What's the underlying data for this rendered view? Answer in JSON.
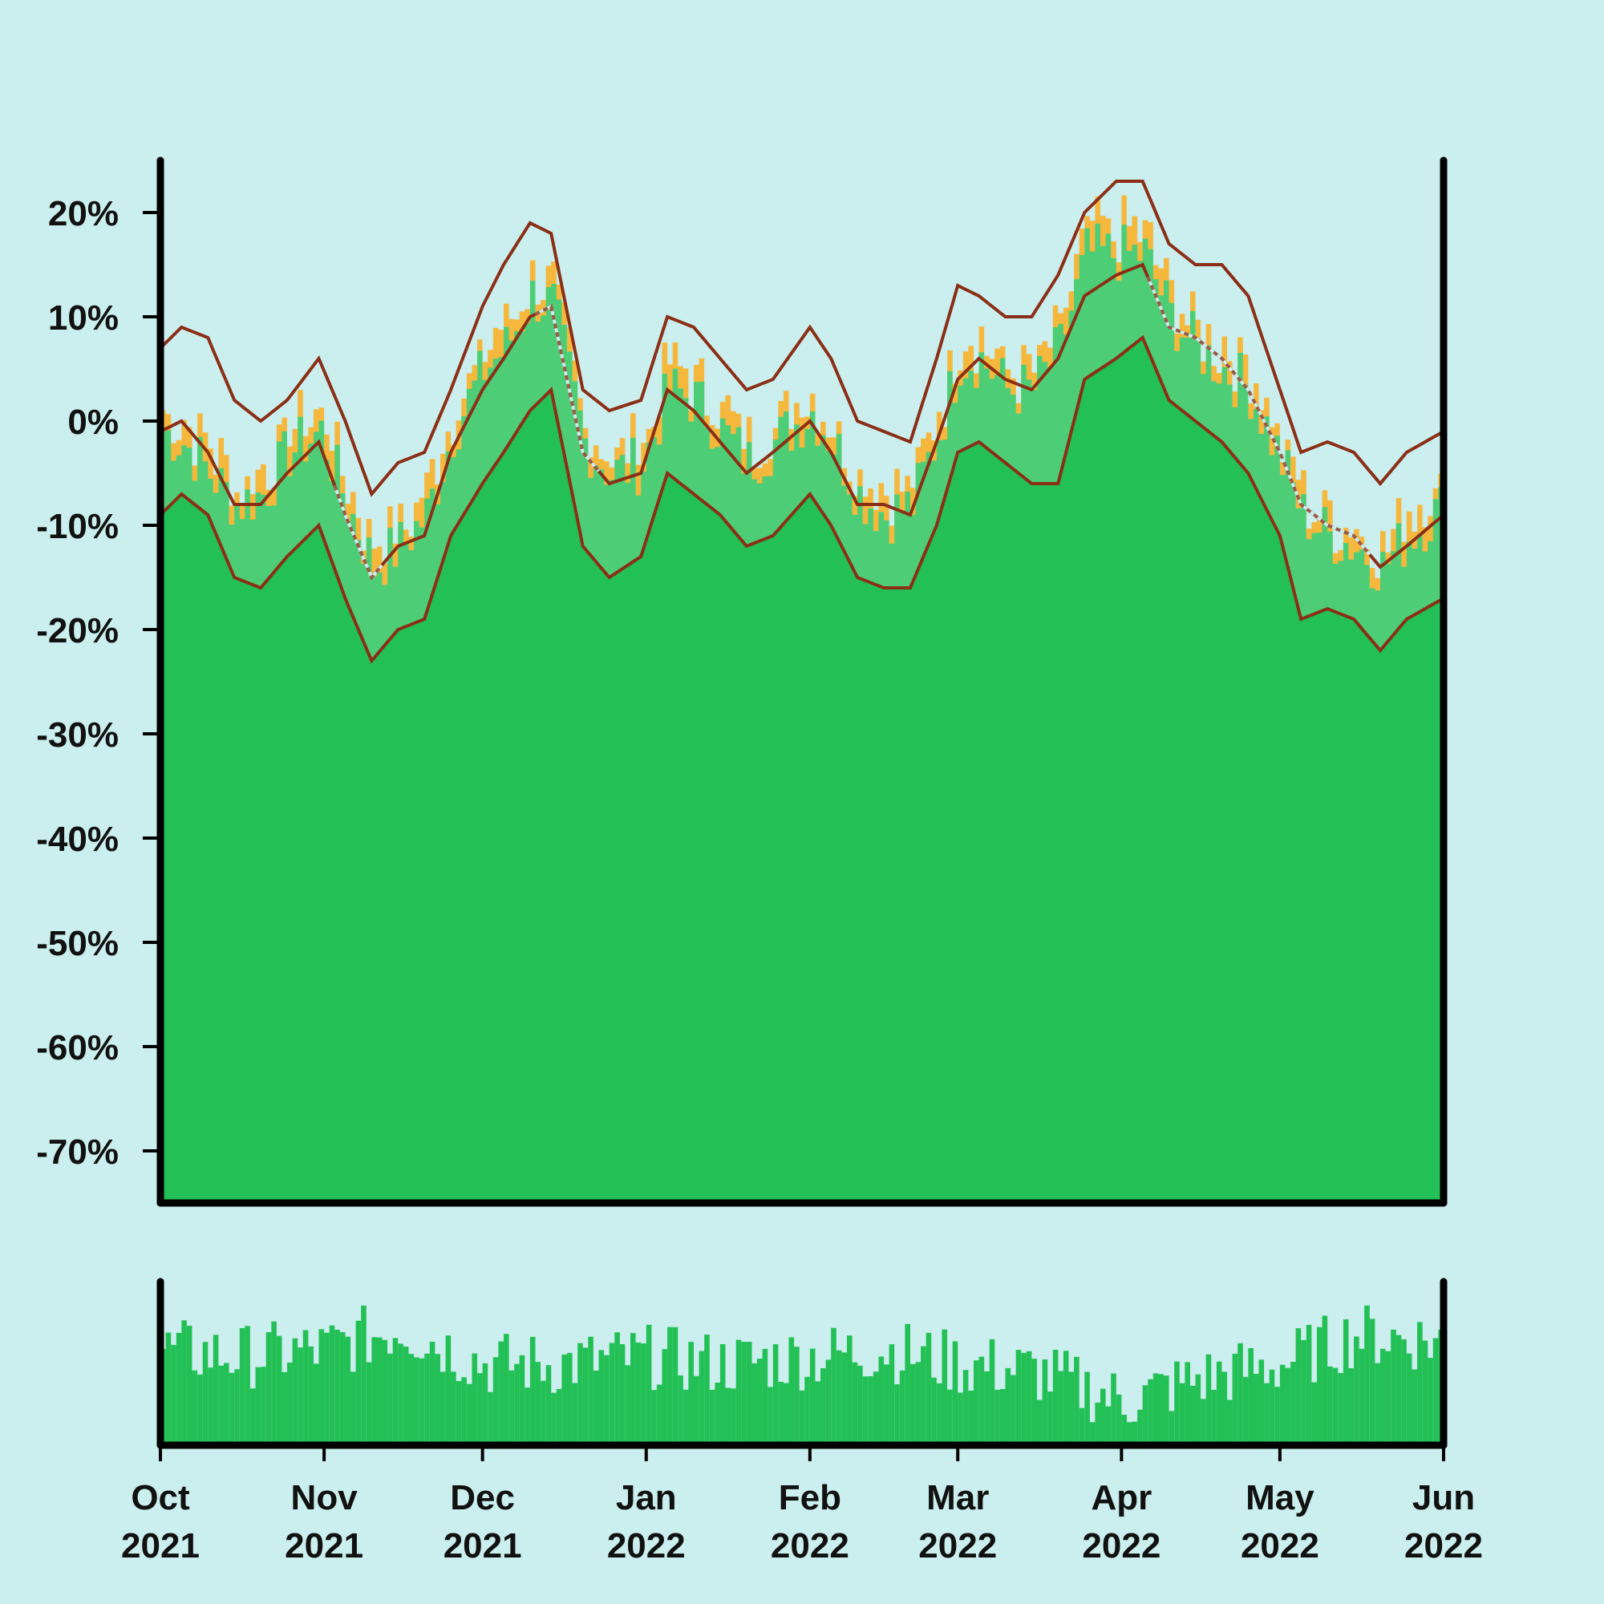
{
  "colors": {
    "background": "#cbeeee",
    "candle_up": "#22c055",
    "candle_down": "#f5b83d",
    "envelope_fill": "#4dce76",
    "band_line": "#8a2f16",
    "ma_dashed": "#9a5a48",
    "volume": "#22c055",
    "axis": "#000000"
  },
  "chart_data": [
    {
      "type": "area",
      "x_range": [
        "2021-10-01",
        "2022-06-01"
      ],
      "y_unit": "%",
      "ylim": [
        -75,
        25
      ],
      "y_ticks": [
        "20%",
        "10%",
        "0%",
        "-10%",
        "-20%",
        "-30%",
        "-40%",
        "-50%",
        "-60%",
        "-70%"
      ],
      "y_tick_values": [
        20,
        10,
        0,
        -10,
        -20,
        -30,
        -40,
        -50,
        -60,
        -70
      ],
      "grid": false,
      "legend": "none",
      "series": [
        {
          "role": "upper-band",
          "x": [
            "2021-10-01",
            "2021-10-05",
            "2021-10-10",
            "2021-10-15",
            "2021-10-20",
            "2021-10-25",
            "2021-10-31",
            "2021-11-05",
            "2021-11-10",
            "2021-11-15",
            "2021-11-20",
            "2021-11-25",
            "2021-12-01",
            "2021-12-05",
            "2021-12-10",
            "2021-12-14",
            "2021-12-20",
            "2021-12-25",
            "2021-12-31",
            "2022-01-05",
            "2022-01-10",
            "2022-01-15",
            "2022-01-20",
            "2022-01-25",
            "2022-02-01",
            "2022-02-05",
            "2022-02-10",
            "2022-02-15",
            "2022-02-20",
            "2022-02-25",
            "2022-03-01",
            "2022-03-05",
            "2022-03-10",
            "2022-03-15",
            "2022-03-20",
            "2022-03-25",
            "2022-03-31",
            "2022-04-05",
            "2022-04-10",
            "2022-04-15",
            "2022-04-20",
            "2022-04-25",
            "2022-05-01",
            "2022-05-05",
            "2022-05-10",
            "2022-05-15",
            "2022-05-20",
            "2022-05-25",
            "2022-06-01"
          ],
          "y": [
            7,
            9,
            8,
            2,
            0,
            2,
            6,
            0,
            -7,
            -4,
            -3,
            3,
            11,
            15,
            19,
            18,
            3,
            1,
            2,
            10,
            9,
            6,
            3,
            4,
            9,
            6,
            0,
            -1,
            -2,
            6,
            13,
            12,
            10,
            10,
            14,
            20,
            23,
            23,
            17,
            15,
            15,
            12,
            3,
            -3,
            -2,
            -3,
            -6,
            -3,
            -1
          ]
        },
        {
          "role": "middle-moving-average",
          "dashed_segments": [
            [
              "2021-11-03",
              "2021-11-12"
            ],
            [
              "2021-12-11",
              "2021-12-23"
            ],
            [
              "2022-04-06",
              "2022-05-18"
            ]
          ],
          "x": [
            "2021-10-01",
            "2021-10-05",
            "2021-10-10",
            "2021-10-15",
            "2021-10-20",
            "2021-10-25",
            "2021-10-31",
            "2021-11-05",
            "2021-11-10",
            "2021-11-15",
            "2021-11-20",
            "2021-11-25",
            "2021-12-01",
            "2021-12-05",
            "2021-12-10",
            "2021-12-14",
            "2021-12-20",
            "2021-12-25",
            "2021-12-31",
            "2022-01-05",
            "2022-01-10",
            "2022-01-15",
            "2022-01-20",
            "2022-01-25",
            "2022-02-01",
            "2022-02-05",
            "2022-02-10",
            "2022-02-15",
            "2022-02-20",
            "2022-02-25",
            "2022-03-01",
            "2022-03-05",
            "2022-03-10",
            "2022-03-15",
            "2022-03-20",
            "2022-03-25",
            "2022-03-31",
            "2022-04-05",
            "2022-04-10",
            "2022-04-15",
            "2022-04-20",
            "2022-04-25",
            "2022-05-01",
            "2022-05-05",
            "2022-05-10",
            "2022-05-15",
            "2022-05-20",
            "2022-05-25",
            "2022-06-01"
          ],
          "y": [
            -1,
            0,
            -3,
            -8,
            -8,
            -5,
            -2,
            -9,
            -15,
            -12,
            -11,
            -3,
            3,
            6,
            10,
            11,
            -3,
            -6,
            -5,
            3,
            1,
            -2,
            -5,
            -3,
            0,
            -3,
            -8,
            -8,
            -9,
            -2,
            4,
            6,
            4,
            3,
            6,
            12,
            14,
            15,
            9,
            8,
            6,
            3,
            -3,
            -8,
            -10,
            -11,
            -14,
            -12,
            -9
          ]
        },
        {
          "role": "lower-band",
          "x": [
            "2021-10-01",
            "2021-10-05",
            "2021-10-10",
            "2021-10-15",
            "2021-10-20",
            "2021-10-25",
            "2021-10-31",
            "2021-11-05",
            "2021-11-10",
            "2021-11-15",
            "2021-11-20",
            "2021-11-25",
            "2021-12-01",
            "2021-12-05",
            "2021-12-10",
            "2021-12-14",
            "2021-12-20",
            "2021-12-25",
            "2021-12-31",
            "2022-01-05",
            "2022-01-10",
            "2022-01-15",
            "2022-01-20",
            "2022-01-25",
            "2022-02-01",
            "2022-02-05",
            "2022-02-10",
            "2022-02-15",
            "2022-02-20",
            "2022-02-25",
            "2022-03-01",
            "2022-03-05",
            "2022-03-10",
            "2022-03-15",
            "2022-03-20",
            "2022-03-25",
            "2022-03-31",
            "2022-04-05",
            "2022-04-10",
            "2022-04-15",
            "2022-04-20",
            "2022-04-25",
            "2022-05-01",
            "2022-05-05",
            "2022-05-10",
            "2022-05-15",
            "2022-05-20",
            "2022-05-25",
            "2022-06-01"
          ],
          "y": [
            -9,
            -7,
            -9,
            -15,
            -16,
            -13,
            -10,
            -17,
            -23,
            -20,
            -19,
            -11,
            -6,
            -3,
            1,
            3,
            -12,
            -15,
            -13,
            -5,
            -7,
            -9,
            -12,
            -11,
            -7,
            -10,
            -15,
            -16,
            -16,
            -10,
            -3,
            -2,
            -4,
            -6,
            -6,
            4,
            6,
            8,
            2,
            0,
            -2,
            -5,
            -11,
            -19,
            -18,
            -19,
            -22,
            -19,
            -17
          ]
        },
        {
          "role": "price-close",
          "x": [
            "2021-10-01",
            "2021-10-05",
            "2021-10-10",
            "2021-10-15",
            "2021-10-20",
            "2021-10-25",
            "2021-10-31",
            "2021-11-05",
            "2021-11-10",
            "2021-11-15",
            "2021-11-20",
            "2021-11-25",
            "2021-12-01",
            "2021-12-05",
            "2021-12-10",
            "2021-12-14",
            "2021-12-20",
            "2021-12-25",
            "2021-12-31",
            "2022-01-05",
            "2022-01-10",
            "2022-01-15",
            "2022-01-20",
            "2022-01-25",
            "2022-02-01",
            "2022-02-05",
            "2022-02-10",
            "2022-02-15",
            "2022-02-20",
            "2022-02-25",
            "2022-03-01",
            "2022-03-05",
            "2022-03-10",
            "2022-03-15",
            "2022-03-20",
            "2022-03-25",
            "2022-03-31",
            "2022-04-05",
            "2022-04-10",
            "2022-04-15",
            "2022-04-20",
            "2022-04-25",
            "2022-05-01",
            "2022-05-05",
            "2022-05-10",
            "2022-05-15",
            "2022-05-20",
            "2022-05-25",
            "2022-06-01"
          ],
          "y": [
            -1,
            -2,
            -5,
            -8,
            -7,
            -3,
            -1,
            -8,
            -14,
            -12,
            -9,
            -1,
            5,
            7,
            12,
            11,
            -2,
            -5,
            -4,
            3,
            2,
            -1,
            -4,
            -2,
            1,
            -2,
            -7,
            -9,
            -8,
            -1,
            6,
            6,
            3,
            3,
            7,
            16,
            16,
            16,
            10,
            7,
            5,
            3,
            -4,
            -9,
            -11,
            -12,
            -14,
            -11,
            -8
          ]
        },
        {
          "role": "volume",
          "x": [
            "2021-10-01",
            "2021-10-15",
            "2021-11-01",
            "2021-11-15",
            "2021-12-01",
            "2021-12-15",
            "2022-01-01",
            "2022-01-15",
            "2022-02-01",
            "2022-02-15",
            "2022-03-01",
            "2022-03-15",
            "2022-04-01",
            "2022-04-15",
            "2022-05-01",
            "2022-05-15",
            "2022-06-01"
          ],
          "y": [
            0.65,
            0.6,
            0.65,
            0.8,
            0.55,
            0.55,
            0.6,
            0.55,
            0.6,
            0.65,
            0.55,
            0.5,
            0.3,
            0.45,
            0.55,
            0.75,
            0.7
          ]
        }
      ],
      "x_ticks": [
        {
          "month": "Oct",
          "year": "2021",
          "date": "2021-10-01"
        },
        {
          "month": "Nov",
          "year": "2021",
          "date": "2021-11-01"
        },
        {
          "month": "Dec",
          "year": "2021",
          "date": "2021-12-01"
        },
        {
          "month": "Jan",
          "year": "2022",
          "date": "2022-01-01"
        },
        {
          "month": "Feb",
          "year": "2022",
          "date": "2022-02-01"
        },
        {
          "month": "Mar",
          "year": "2022",
          "date": "2022-03-01"
        },
        {
          "month": "Apr",
          "year": "2022",
          "date": "2022-04-01"
        },
        {
          "month": "May",
          "year": "2022",
          "date": "2022-05-01"
        },
        {
          "month": "Jun",
          "year": "2022",
          "date": "2022-06-01"
        }
      ]
    }
  ]
}
